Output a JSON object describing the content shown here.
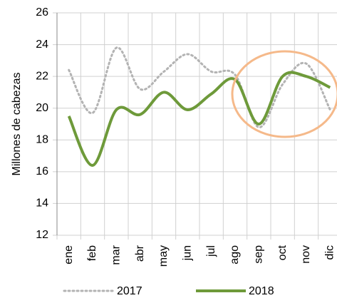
{
  "chart_data": {
    "type": "line",
    "y_label": "Millones de cabezas",
    "categories": [
      "ene",
      "feb",
      "mar",
      "abr",
      "may",
      "jun",
      "jul",
      "ago",
      "sep",
      "oct",
      "nov",
      "dic"
    ],
    "series": [
      {
        "name": "2017",
        "color": "#b3b3b3",
        "dash": "dotted",
        "values": [
          22.4,
          19.7,
          23.8,
          21.2,
          22.3,
          23.4,
          22.3,
          22.1,
          18.8,
          21.5,
          22.8,
          19.9
        ]
      },
      {
        "name": "2018",
        "color": "#6e9a3a",
        "dash": "solid",
        "values": [
          19.5,
          16.4,
          19.9,
          19.6,
          21.0,
          19.9,
          20.9,
          21.8,
          19.0,
          22.0,
          22.0,
          21.3
        ]
      }
    ],
    "ylim": [
      12,
      26
    ],
    "yticks": [
      12,
      14,
      16,
      18,
      20,
      22,
      24,
      26
    ],
    "grid": true,
    "legend": "bottom"
  }
}
